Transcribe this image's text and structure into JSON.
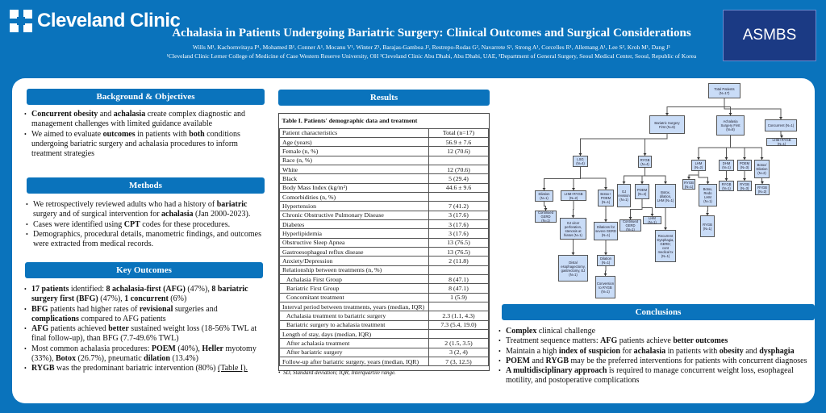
{
  "header": {
    "logo_text": "Cleveland Clinic",
    "title": "Achalasia in Patients Undergoing Bariatric Surgery: Clinical Outcomes and Surgical Considerations",
    "authors": "Wills M¹, Kachornvitaya P¹, Mohamed B¹, Conner A¹, Mocanu V¹, Winter Z¹, Barajas-Gamboa J², Restrepo-Rodas G², Navarrete S¹, Strong A¹, Corcelles R¹, Allemang A¹, Lee S³, Kroh M¹, Dang J¹",
    "affiliations": "¹Cleveland Clinic Lerner College of Medicine of Case Western Reserve University, OH ²Cleveland Clinic Abu Dhabi, Abu Dhabi, UAE, ³Department of General Surgery, Seoul Medical Center, Seoul, Republic of Korea",
    "asmbs_logo": "ASMBS"
  },
  "sections": {
    "background": {
      "title": "Background & Objectives",
      "bullets": [
        [
          {
            "t": "Concurrent obesity",
            "b": 1
          },
          {
            "t": " and "
          },
          {
            "t": "achalasia",
            "b": 1
          },
          {
            "t": " create complex diagnostic and management challenges with limited guidance available"
          }
        ],
        [
          {
            "t": "We aimed to evaluate "
          },
          {
            "t": "outcomes",
            "b": 1
          },
          {
            "t": " in patients with "
          },
          {
            "t": "both",
            "b": 1
          },
          {
            "t": " conditions undergoing bariatric surgery and achalasia procedures to inform treatment strategies"
          }
        ]
      ]
    },
    "methods": {
      "title": "Methods",
      "bullets": [
        [
          {
            "t": "We retrospectively reviewed adults who had a history of "
          },
          {
            "t": "bariatric",
            "b": 1
          },
          {
            "t": " surgery and of surgical intervention for "
          },
          {
            "t": "achalasia",
            "b": 1
          },
          {
            "t": " (Jan 2000-2023)."
          }
        ],
        [
          {
            "t": "Cases were identified using "
          },
          {
            "t": "CPT",
            "b": 1
          },
          {
            "t": " codes for these procedures."
          }
        ],
        [
          {
            "t": "Demographics, procedural details, manometric findings, and outcomes were extracted from medical records."
          }
        ]
      ]
    },
    "outcomes": {
      "title": "Key Outcomes",
      "bullets": [
        [
          {
            "t": "17 patients",
            "b": 1
          },
          {
            "t": " identified: "
          },
          {
            "t": "8 achalasia-first (AFG)",
            "b": 1
          },
          {
            "t": " (47%), "
          },
          {
            "t": "8 bariatric surgery first (BFG)",
            "b": 1
          },
          {
            "t": " (47%), "
          },
          {
            "t": "1 concurrent",
            "b": 1
          },
          {
            "t": " (6%)"
          }
        ],
        [
          {
            "t": "BFG",
            "b": 1
          },
          {
            "t": " patients had higher rates of "
          },
          {
            "t": "revisional",
            "b": 1
          },
          {
            "t": " surgeries and "
          },
          {
            "t": "complications",
            "b": 1
          },
          {
            "t": " compared to AFG patients"
          }
        ],
        [
          {
            "t": "AFG",
            "b": 1
          },
          {
            "t": " patients achieved "
          },
          {
            "t": "better",
            "b": 1
          },
          {
            "t": " sustained weight loss (18-56% TWL at final follow-up), than BFG (7.7-49.6% TWL)"
          }
        ],
        [
          {
            "t": "Most common achalasia procedures: "
          },
          {
            "t": "POEM",
            "b": 1
          },
          {
            "t": " (40%), "
          },
          {
            "t": "Heller",
            "b": 1
          },
          {
            "t": " myotomy (33%), "
          },
          {
            "t": "Botox",
            "b": 1
          },
          {
            "t": " (26.7%), pneumatic "
          },
          {
            "t": "dilation",
            "b": 1
          },
          {
            "t": " (13.4%)"
          }
        ],
        [
          {
            "t": "RYGB",
            "b": 1
          },
          {
            "t": " was the predominant bariatric intervention (80%) "
          },
          {
            "t": "(Table I).",
            "u": 1
          }
        ]
      ]
    },
    "results": {
      "title": "Results"
    },
    "conclusions": {
      "title": "Conclusions",
      "bullets": [
        [
          {
            "t": "Complex",
            "b": 1
          },
          {
            "t": " clinical challenge"
          }
        ],
        [
          {
            "t": "Treatment sequence matters: "
          },
          {
            "t": "AFG",
            "b": 1
          },
          {
            "t": " patients achieve "
          },
          {
            "t": "better outcomes",
            "b": 1
          }
        ],
        [
          {
            "t": "Maintain a high "
          },
          {
            "t": "index of suspicion",
            "b": 1
          },
          {
            "t": " for "
          },
          {
            "t": "achalasia",
            "b": 1
          },
          {
            "t": " in patients with "
          },
          {
            "t": "obesity",
            "b": 1
          },
          {
            "t": " and "
          },
          {
            "t": "dysphagia",
            "b": 1
          }
        ],
        [
          {
            "t": "POEM",
            "b": 1
          },
          {
            "t": " and "
          },
          {
            "t": "RYGB",
            "b": 1
          },
          {
            "t": " may be the preferred interventions for patients with concurrent diagnoses"
          }
        ],
        [
          {
            "t": "A multidisciplinary approach",
            "b": 1
          },
          {
            "t": " is required to manage concurrent weight loss, esophageal motility, and postoperative complications"
          }
        ]
      ]
    }
  },
  "table": {
    "caption": "Table I. Patients' demographic data and treatment",
    "rows": [
      [
        "Patient characteristics",
        "Total (n=17)",
        0
      ],
      [
        "Age (years)",
        "56.9 ± 7.6",
        0
      ],
      [
        "Female (n, %)",
        "12 (70.6)",
        0
      ],
      [
        "Race (n, %)",
        "",
        0
      ],
      [
        "White",
        "12 (70.6)",
        0
      ],
      [
        "Black",
        "5 (29.4)",
        0
      ],
      [
        "Body Mass Index (kg/m²)",
        "44.6 ± 9.6",
        0
      ],
      [
        "Comorbidities (n, %)",
        "",
        0
      ],
      [
        "Hypertension",
        "7 (41.2)",
        0
      ],
      [
        "Chronic Obstructive Pulmonary Disease",
        "3 (17.6)",
        0
      ],
      [
        "Diabetes",
        "3 (17.6)",
        0
      ],
      [
        "Hyperlipidemia",
        "3 (17.6)",
        0
      ],
      [
        "Obstructive Sleep Apnea",
        "13 (76.5)",
        0
      ],
      [
        "Gastroesophageal reflux disease",
        "13 (76.5)",
        0
      ],
      [
        "Anxiety/Depression",
        "2 (11.8)",
        0
      ],
      [
        "Relationship between treatments (n, %)",
        "",
        0
      ],
      [
        "Achalasia First Group",
        "8 (47.1)",
        1
      ],
      [
        "Bariatric First Group",
        "8 (47.1)",
        1
      ],
      [
        "Concomitant treatment",
        "1 (5.9)",
        1
      ],
      [
        "Interval period between treatments, years (median, IQR)",
        "",
        0
      ],
      [
        "Achalasia treatment to bariatric surgery",
        "2.3 (1.1, 4.3)",
        1
      ],
      [
        "Bariatric surgery to achalasia treatment",
        "7.3 (5.4, 19.0)",
        1
      ],
      [
        "Length of stay, days (median, IQR)",
        "",
        0
      ],
      [
        "After achalasia treatment",
        "2 (1.5, 3.5)",
        1
      ],
      [
        "After bariatric surgery",
        "3 (2, 4)",
        1
      ],
      [
        "Follow-up after bariatric surgery, years (median, IQR)",
        "7 (3, 12.5)",
        0
      ]
    ],
    "note": "SD, Standard deviation; IQR, Interquartile range."
  },
  "flowchart": {
    "nodes": [
      {
        "id": "total",
        "label": "Total Patients (N=17)"
      },
      {
        "id": "bfg",
        "label": "Bariatric Surgery First (N=8)"
      },
      {
        "id": "afg",
        "label": "Achalasia Surgery First (N=8)"
      },
      {
        "id": "conc",
        "label": "Concurrent (N=1)"
      },
      {
        "id": "conc1",
        "label": "LHM+RYGB (N=1)"
      },
      {
        "id": "lsg",
        "label": "LSG (N=4)"
      },
      {
        "id": "rygb",
        "label": "RYGB (N=4)"
      },
      {
        "id": "l1",
        "label": "Dilation (N=1)"
      },
      {
        "id": "l1a",
        "label": "Continued GERD (N=1)"
      },
      {
        "id": "l2",
        "label": "LHM+RYGB (N=2)"
      },
      {
        "id": "l2a",
        "label": "GJ ulcer perforation, stenosis at hiatus (N=1)"
      },
      {
        "id": "l2b",
        "label": "Distal esophagectomy, gastrectomy, EJ (N=1)"
      },
      {
        "id": "l3",
        "label": "Botox+ POEM (N=1)"
      },
      {
        "id": "l3a",
        "label": "Dilations for severe GERD (N=1)"
      },
      {
        "id": "l3b",
        "label": "Dilation (N=1)"
      },
      {
        "id": "l3c",
        "label": "Conversion to RYGB (N=1)"
      },
      {
        "id": "r1",
        "label": "GJ revision (N=1)"
      },
      {
        "id": "r2",
        "label": "POEM (N=2)"
      },
      {
        "id": "r2a",
        "label": "Continued GERD (N=1)"
      },
      {
        "id": "r2b",
        "label": "LHM (N=1)"
      },
      {
        "id": "r3",
        "label": "Botox, dilation, LHM (N=1)"
      },
      {
        "id": "r3a",
        "label": "Recurrent Dysphagia, GERD; cont medical tx (N=1)"
      },
      {
        "id": "a1",
        "label": "LHM (N=2)"
      },
      {
        "id": "a1a",
        "label": "RYGB (N=1)"
      },
      {
        "id": "a1b",
        "label": "Botox, Redo LHM (N=1)"
      },
      {
        "id": "a1c",
        "label": "RYGB (N=1)"
      },
      {
        "id": "a2",
        "label": "DHM (N=1)"
      },
      {
        "id": "a2a",
        "label": "RYGB (N=1)"
      },
      {
        "id": "a3",
        "label": "POEM (N=3)"
      },
      {
        "id": "a3a",
        "label": "RYGB (N=3)"
      },
      {
        "id": "a4",
        "label": "Botox/ Dilation (N=2)"
      },
      {
        "id": "a4a",
        "label": "RYGB (N=2)"
      }
    ],
    "edges": [
      [
        "total",
        "bfg"
      ],
      [
        "total",
        "afg"
      ],
      [
        "total",
        "conc"
      ],
      [
        "conc",
        "conc1"
      ],
      [
        "bfg",
        "lsg"
      ],
      [
        "bfg",
        "rygb"
      ],
      [
        "lsg",
        "l1"
      ],
      [
        "lsg",
        "l2"
      ],
      [
        "lsg",
        "l3"
      ],
      [
        "l1",
        "l1a"
      ],
      [
        "l2",
        "l2a"
      ],
      [
        "l2a",
        "l2b"
      ],
      [
        "l3",
        "l3a"
      ],
      [
        "l3a",
        "l3b"
      ],
      [
        "l3b",
        "l3c"
      ],
      [
        "rygb",
        "r1"
      ],
      [
        "rygb",
        "r2"
      ],
      [
        "rygb",
        "r3"
      ],
      [
        "r2",
        "r2a"
      ],
      [
        "r2",
        "r2b"
      ],
      [
        "r3",
        "r3a"
      ],
      [
        "afg",
        "a1"
      ],
      [
        "afg",
        "a2"
      ],
      [
        "afg",
        "a3"
      ],
      [
        "afg",
        "a4"
      ],
      [
        "a1",
        "a1a"
      ],
      [
        "a1",
        "a1b"
      ],
      [
        "a1b",
        "a1c"
      ],
      [
        "a2",
        "a2a"
      ],
      [
        "a3",
        "a3a"
      ],
      [
        "a4",
        "a4a"
      ]
    ]
  }
}
